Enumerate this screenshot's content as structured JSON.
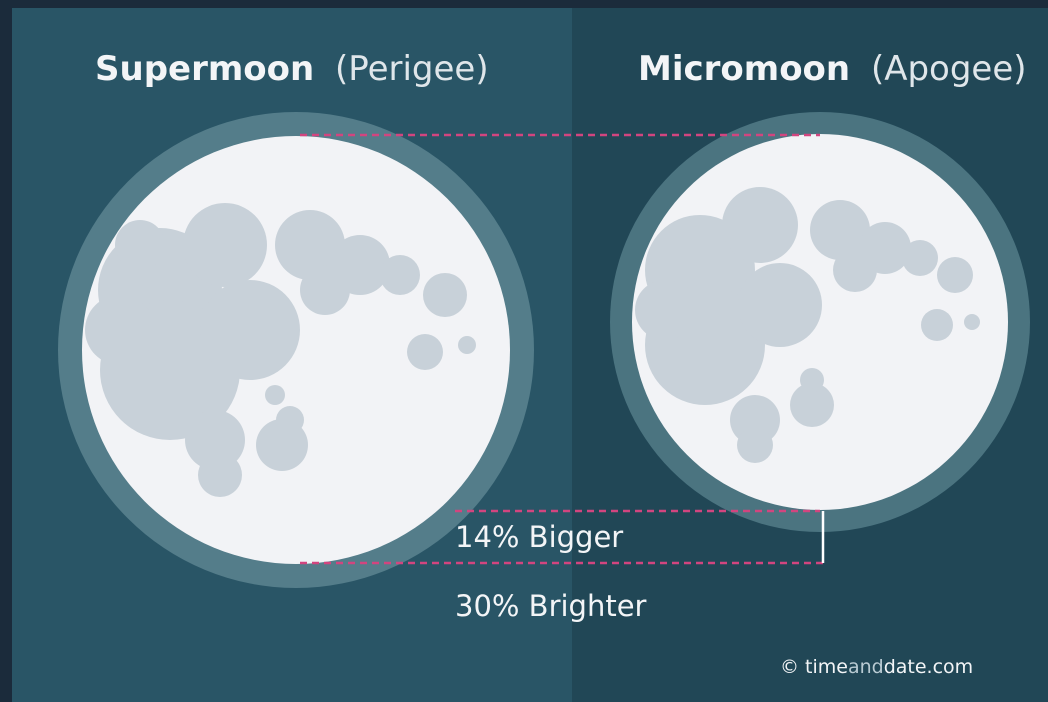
{
  "panels": [
    {
      "name": "Supermoon",
      "qualifier": "(Perigee)"
    },
    {
      "name": "Micromoon",
      "qualifier": "(Apogee)"
    }
  ],
  "labels": {
    "size": "14% Bigger",
    "brightness": "30% Brighter"
  },
  "credit": [
    "© time",
    "and",
    "date.com"
  ]
}
